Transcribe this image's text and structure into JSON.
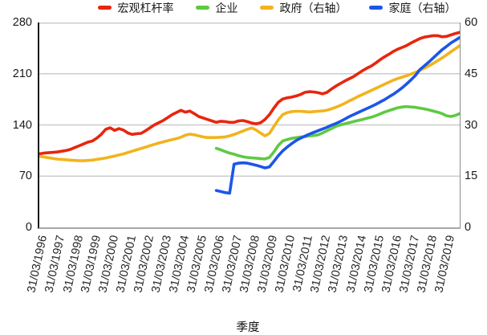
{
  "x_axis_title": "季度",
  "chart_data": {
    "type": "line",
    "title": "",
    "xlabel": "季度",
    "grid": true,
    "legend_position": "top",
    "gridline_color": "#cccccc",
    "x_tick_labels": [
      "31/03/1996",
      "31/03/1997",
      "31/03/1998",
      "31/03/1999",
      "31/03/2000",
      "31/03/2001",
      "31/03/2002",
      "31/03/2003",
      "31/03/2004",
      "31/03/2005",
      "31/03/2006",
      "31/03/2007",
      "31/03/2008",
      "31/03/2009",
      "31/03/2010",
      "31/03/2011",
      "31/03/2012",
      "31/03/2013",
      "31/03/2014",
      "31/03/2015",
      "31/03/2016",
      "31/03/2017",
      "31/03/2018",
      "31/03/2019"
    ],
    "quarters_per_tick": 4,
    "total_quarters": 96,
    "left_axis": {
      "min": 0,
      "max": 280,
      "tick_labels": [
        "280",
        "210",
        "140",
        "70",
        "0"
      ]
    },
    "right_axis": {
      "min": 0,
      "max": 60,
      "tick_labels": [
        "60",
        "45",
        "30",
        "15",
        "0"
      ]
    },
    "series": [
      {
        "name": "宏观杠杆率",
        "color": "#e8250e",
        "axis": "left",
        "start_index": 0,
        "values": [
          100.5,
          101.5,
          102,
          102.5,
          103,
          104,
          105,
          106.5,
          109,
          111.5,
          114,
          116.5,
          118,
          122,
          127,
          134,
          136,
          132.5,
          135,
          133,
          129,
          127,
          128,
          128.5,
          132,
          136,
          140,
          143,
          146,
          150,
          154,
          157,
          160,
          157.5,
          159,
          155.5,
          151.5,
          149.5,
          147.5,
          145.5,
          143.5,
          145,
          144.5,
          143.5,
          143.5,
          145.5,
          146,
          144.5,
          142.5,
          141.5,
          143,
          147.5,
          154,
          163,
          171,
          175.5,
          177,
          178,
          179.5,
          181.5,
          184.5,
          185.5,
          185,
          184,
          182.5,
          184.5,
          189,
          193,
          196.5,
          200,
          203,
          206,
          210,
          214,
          217.5,
          220.5,
          224.5,
          229,
          233,
          236.5,
          240.5,
          243.5,
          246,
          248.5,
          252,
          255,
          258,
          260,
          261,
          262,
          262,
          260.5,
          261,
          263,
          265,
          266.5
        ]
      },
      {
        "name": "企业",
        "color": "#5fc943",
        "axis": "left",
        "start_index": 40,
        "values": [
          108,
          106,
          103.5,
          101.5,
          100,
          98,
          96.5,
          95.5,
          95,
          94.5,
          94,
          93.5,
          95.5,
          103,
          112,
          118,
          120,
          121.5,
          122.5,
          123.5,
          124,
          125,
          125.5,
          126.5,
          129,
          132,
          135,
          138,
          140,
          141.5,
          143,
          144.5,
          146,
          147.5,
          149,
          150.5,
          152.5,
          155,
          157.5,
          159.5,
          161.5,
          163.5,
          164.5,
          165,
          164.5,
          164,
          163,
          162,
          160.5,
          159,
          157.5,
          155.5,
          152.5,
          151.5,
          153,
          155.5
        ]
      },
      {
        "name": "政府（右轴）",
        "color": "#f2b31c",
        "axis": "right",
        "start_index": 0,
        "values": [
          20.8,
          20.6,
          20.4,
          20.2,
          20,
          19.9,
          19.8,
          19.7,
          19.6,
          19.5,
          19.5,
          19.6,
          19.7,
          19.9,
          20.1,
          20.3,
          20.6,
          20.9,
          21.2,
          21.5,
          21.9,
          22.3,
          22.7,
          23.1,
          23.5,
          23.9,
          24.3,
          24.7,
          25,
          25.4,
          25.7,
          26,
          26.4,
          27,
          27.3,
          27.1,
          26.8,
          26.5,
          26.3,
          26.3,
          26.3,
          26.4,
          26.5,
          26.8,
          27.2,
          27.7,
          28.2,
          28.7,
          29.1,
          28.5,
          27.6,
          26.8,
          27.5,
          29.5,
          31.5,
          33,
          33.6,
          33.9,
          34,
          34,
          33.9,
          33.8,
          33.9,
          34,
          34.1,
          34.3,
          34.7,
          35.2,
          35.7,
          36.3,
          37,
          37.6,
          38.3,
          38.9,
          39.5,
          40.1,
          40.7,
          41.3,
          41.9,
          42.5,
          43.1,
          43.6,
          44,
          44.4,
          44.9,
          45.4,
          46,
          46.6,
          47.3,
          48,
          48.8,
          49.6,
          50.5,
          51.4,
          52.3,
          53.2
        ]
      },
      {
        "name": "家庭（右轴）",
        "color": "#1c55e8",
        "axis": "right",
        "start_index": 40,
        "values": [
          10.8,
          10.5,
          10.2,
          10,
          18.5,
          18.8,
          18.9,
          18.8,
          18.5,
          18.2,
          17.8,
          17.4,
          17.7,
          19.3,
          21,
          22.4,
          23.5,
          24.5,
          25.4,
          26.1,
          26.7,
          27.3,
          27.8,
          28.3,
          28.8,
          29.3,
          29.9,
          30.4,
          31,
          31.7,
          32.4,
          33,
          33.6,
          34.2,
          34.8,
          35.4,
          36,
          36.7,
          37.4,
          38.2,
          39,
          39.9,
          40.9,
          42,
          43.2,
          44.5,
          46.2,
          47.3,
          48.4,
          49.6,
          50.8,
          52,
          53,
          54,
          54.8,
          55.6
        ]
      }
    ]
  },
  "spine_colors": {
    "left": "#1a1a1a",
    "right": "#8a8a8a",
    "bottom": "#a8a8a8"
  }
}
